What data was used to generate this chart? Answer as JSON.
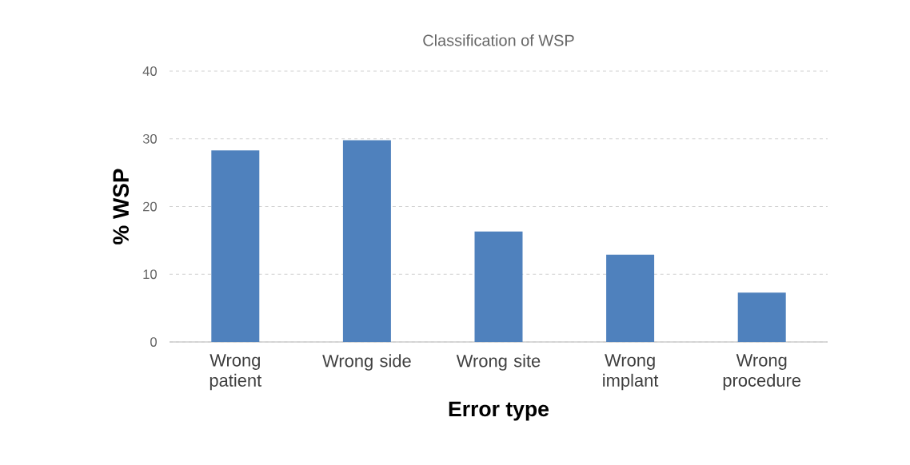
{
  "chart_data": {
    "type": "bar",
    "title": "Classification of WSP",
    "xlabel": "Error type",
    "ylabel": "% WSP",
    "categories": [
      "Wrong patient",
      "Wrong side",
      "Wrong site",
      "Wrong implant",
      "Wrong procedure"
    ],
    "values": [
      28.3,
      29.8,
      16.3,
      12.9,
      7.3
    ],
    "color": "#4f81bd",
    "ylim": [
      0,
      40
    ],
    "yticks": [
      0,
      10,
      20,
      30,
      40
    ],
    "grid": "y"
  }
}
